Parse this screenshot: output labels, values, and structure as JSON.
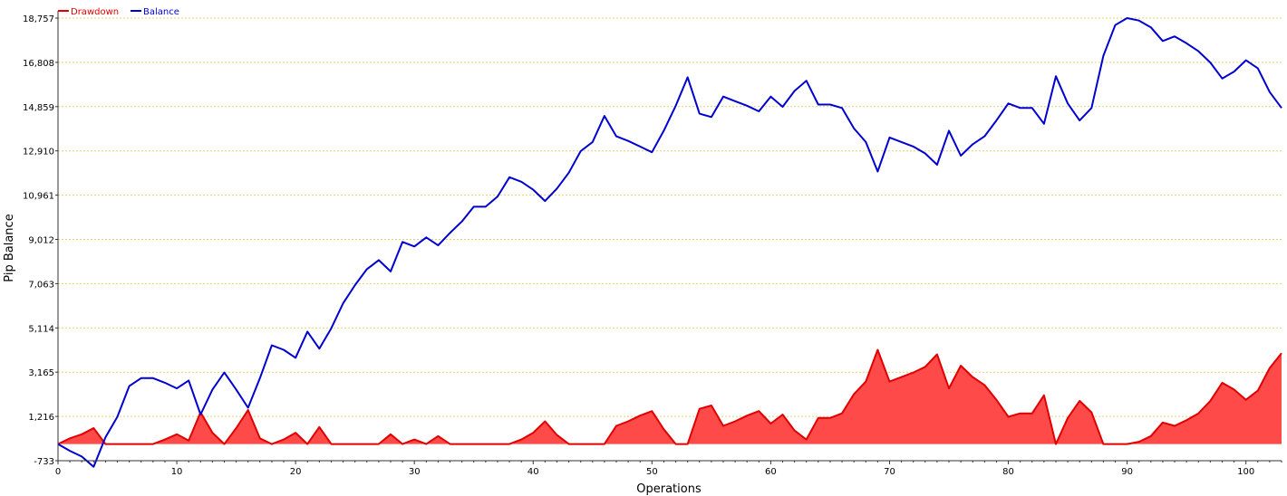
{
  "chart_data": {
    "type": "line",
    "xlabel": "Operations",
    "ylabel": "Pip Balance",
    "xlim": [
      0,
      103
    ],
    "ylim": [
      -733,
      18757
    ],
    "x_ticks": [
      "0",
      "10",
      "20",
      "30",
      "40",
      "50",
      "60",
      "70",
      "80",
      "90",
      "100"
    ],
    "y_ticks": [
      "-733",
      "1,216",
      "3,165",
      "5,114",
      "7,063",
      "9,012",
      "10,961",
      "12,910",
      "14,859",
      "16,808",
      "18,757"
    ],
    "grid": true,
    "legend": "top-left",
    "series": [
      {
        "name": "Drawdown",
        "color": "#e00000",
        "fill": "#ff4a4a",
        "values": [
          0,
          250,
          430,
          700,
          0,
          0,
          0,
          0,
          0,
          200,
          430,
          150,
          1400,
          500,
          0,
          700,
          1500,
          250,
          0,
          200,
          500,
          0,
          750,
          0,
          0,
          0,
          0,
          0,
          430,
          0,
          200,
          0,
          350,
          0,
          0,
          0,
          0,
          0,
          0,
          200,
          500,
          1000,
          400,
          0,
          0,
          0,
          0,
          800,
          1000,
          1250,
          1450,
          650,
          0,
          0,
          1550,
          1700,
          800,
          1000,
          1250,
          1450,
          900,
          1300,
          600,
          200,
          1150,
          1150,
          1350,
          2200,
          2750,
          4150,
          2750,
          2950,
          3150,
          3400,
          3950,
          2450,
          3450,
          2950,
          2600,
          1950,
          1200,
          1350,
          1350,
          2150,
          0,
          1150,
          1900,
          1400,
          0,
          0,
          0,
          100,
          350,
          950,
          800,
          1050,
          1350,
          1900,
          2700,
          2400,
          1950,
          2350,
          3350,
          4000
        ]
      },
      {
        "name": "Balance",
        "color": "#0000d0",
        "values": [
          0,
          -300,
          -550,
          -1000,
          300,
          1200,
          2550,
          2900,
          2900,
          2700,
          2450,
          2800,
          1300,
          2400,
          3150,
          2400,
          1600,
          2900,
          4350,
          4150,
          3800,
          4950,
          4200,
          5100,
          6200,
          7000,
          7700,
          8100,
          7600,
          8900,
          8700,
          9100,
          8750,
          9300,
          9800,
          10450,
          10450,
          10900,
          11750,
          11550,
          11200,
          10700,
          11250,
          11950,
          12900,
          13300,
          14450,
          13550,
          13350,
          13100,
          12850,
          13800,
          14900,
          16150,
          14550,
          14400,
          15300,
          15100,
          14900,
          14650,
          15300,
          14850,
          15550,
          16000,
          14950,
          14950,
          14800,
          13900,
          13300,
          12000,
          13500,
          13300,
          13100,
          12800,
          12300,
          13800,
          12700,
          13200,
          13550,
          14250,
          15000,
          14800,
          14800,
          14100,
          16200,
          15000,
          14250,
          14800,
          17100,
          18450,
          18757,
          18650,
          18350,
          17750,
          17950,
          17650,
          17300,
          16800,
          16100,
          16400,
          16900,
          16550,
          15500,
          14800
        ]
      }
    ]
  }
}
